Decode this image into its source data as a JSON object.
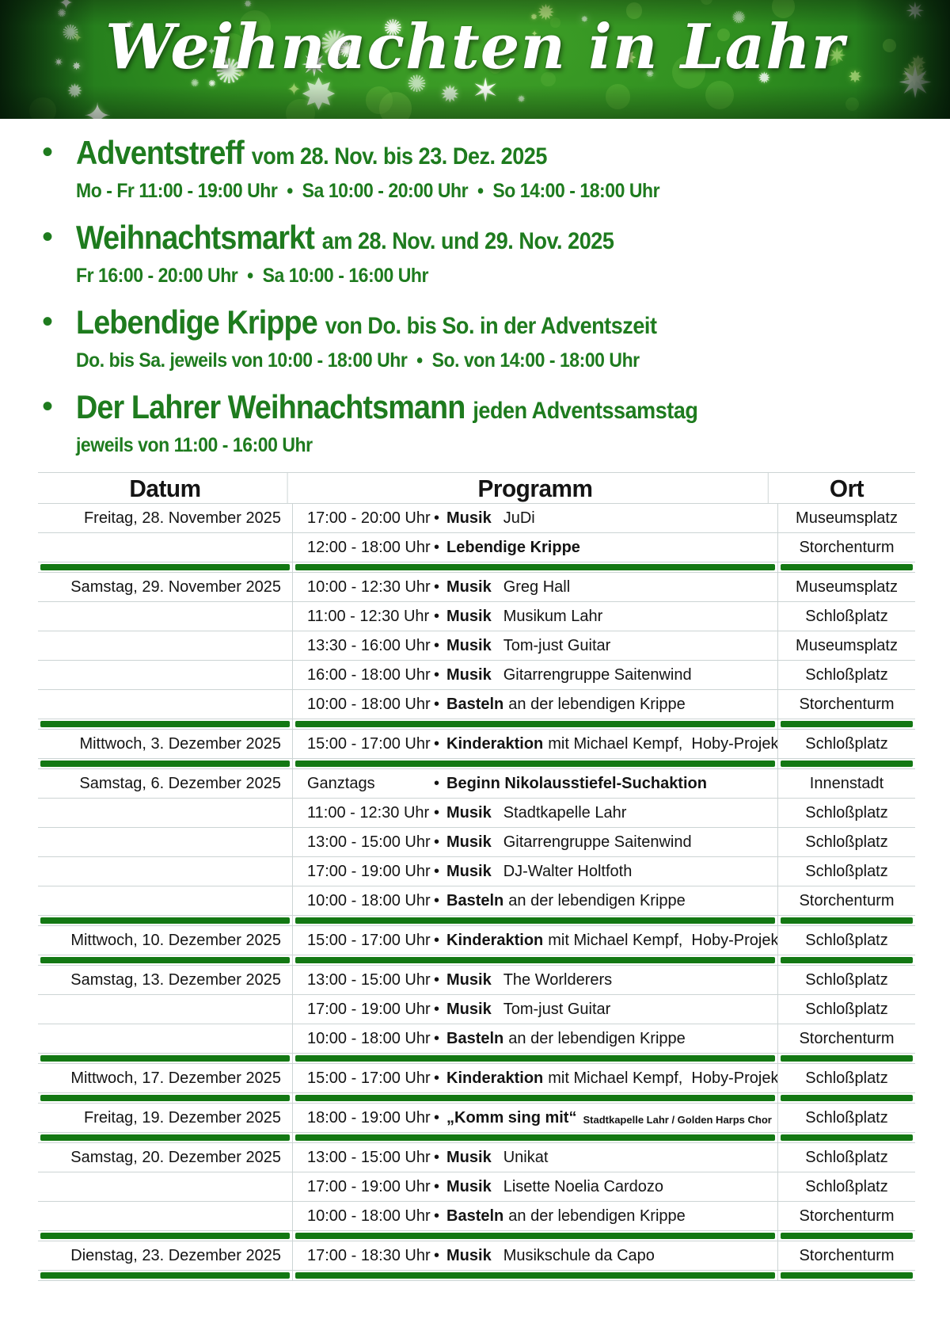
{
  "banner": {
    "title": "Weihnachten in Lahr"
  },
  "colors": {
    "heading_green": "#1e7b1e",
    "bar_green": "#137813",
    "banner_center_green": "#3fa028",
    "banner_edge_green": "#093312",
    "table_line_gray": "#ccd4d4"
  },
  "events": [
    {
      "bullet": "•",
      "title": "Adventstreff",
      "subtitle": "vom 28. Nov. bis 23. Dez. 2025",
      "times": "Mo - Fr 11:00 - 19:00 Uhr  •  Sa 10:00 - 20:00 Uhr  •  So 14:00 - 18:00 Uhr"
    },
    {
      "bullet": "•",
      "title": "Weihnachtsmarkt",
      "subtitle": "am 28. Nov. und 29. Nov. 2025",
      "times": "Fr 16:00 - 20:00 Uhr  •  Sa 10:00 - 16:00 Uhr"
    },
    {
      "bullet": "•",
      "title": "Lebendige Krippe",
      "subtitle": "von Do. bis So. in der Adventszeit",
      "times": "Do. bis Sa. jeweils von 10:00 - 18:00 Uhr  •  So. von 14:00 - 18:00 Uhr"
    },
    {
      "bullet": "•",
      "title": "Der Lahrer Weihnachtsmann",
      "subtitle": "jeden Adventssamstag",
      "times": "jeweils von 11:00 - 16:00 Uhr"
    }
  ],
  "table": {
    "headers": [
      "Datum",
      "Programm",
      "Ort"
    ],
    "bullet_char": "•",
    "groups": [
      {
        "date": "Freitag, 28. November 2025",
        "rows": [
          {
            "time": "17:00 - 20:00 Uhr",
            "label": "Musik",
            "detail": "JuDi",
            "ort": "Museumsplatz"
          },
          {
            "time": "12:00 - 18:00 Uhr",
            "label": "Lebendige Krippe",
            "detail": "",
            "ort": "Storchenturm"
          }
        ]
      },
      {
        "date": "Samstag, 29. November 2025",
        "rows": [
          {
            "time": "10:00 - 12:30 Uhr",
            "label": "Musik",
            "detail": "Greg Hall",
            "ort": "Museumsplatz"
          },
          {
            "time": "11:00 - 12:30 Uhr",
            "label": "Musik",
            "detail": "Musikum Lahr",
            "ort": "Schloßplatz"
          },
          {
            "time": "13:30 - 16:00 Uhr",
            "label": "Musik",
            "detail": "Tom-just Guitar",
            "ort": "Museumsplatz"
          },
          {
            "time": "16:00 - 18:00 Uhr",
            "label": "Musik",
            "detail": "Gitarrengruppe Saitenwind",
            "ort": "Schloßplatz"
          },
          {
            "time": "10:00 - 18:00 Uhr",
            "label": "Basteln",
            "detail": "an der lebendigen Krippe",
            "ort": "Storchenturm"
          }
        ]
      },
      {
        "date": "Mittwoch, 3. Dezember 2025",
        "rows": [
          {
            "time": "15:00 - 17:00 Uhr",
            "label": "Kinderaktion",
            "detail": "mit Michael Kempf,  Hoby-Projekt",
            "ort": "Schloßplatz"
          }
        ]
      },
      {
        "date": "Samstag, 6. Dezember 2025",
        "rows": [
          {
            "time": "Ganztags",
            "label": "Beginn Nikolausstiefel-Suchaktion",
            "detail": "",
            "ort": "Innenstadt"
          },
          {
            "time": "11:00 - 12:30 Uhr",
            "label": "Musik",
            "detail": "Stadtkapelle Lahr",
            "ort": "Schloßplatz"
          },
          {
            "time": "13:00 - 15:00 Uhr",
            "label": "Musik",
            "detail": "Gitarrengruppe Saitenwind",
            "ort": "Schloßplatz"
          },
          {
            "time": "17:00 - 19:00 Uhr",
            "label": "Musik",
            "detail": "DJ-Walter Holtfoth",
            "ort": "Schloßplatz"
          },
          {
            "time": "10:00 - 18:00 Uhr",
            "label": "Basteln",
            "detail": "an der lebendigen Krippe",
            "ort": "Storchenturm"
          }
        ]
      },
      {
        "date": "Mittwoch, 10. Dezember 2025",
        "rows": [
          {
            "time": "15:00 - 17:00 Uhr",
            "label": "Kinderaktion",
            "detail": "mit Michael Kempf,  Hoby-Projekt",
            "ort": "Schloßplatz"
          }
        ]
      },
      {
        "date": "Samstag, 13. Dezember 2025",
        "rows": [
          {
            "time": "13:00 - 15:00 Uhr",
            "label": "Musik",
            "detail": "The Worlderers",
            "ort": "Schloßplatz"
          },
          {
            "time": "17:00 - 19:00 Uhr",
            "label": "Musik",
            "detail": "Tom-just Guitar",
            "ort": "Schloßplatz"
          },
          {
            "time": "10:00 - 18:00 Uhr",
            "label": "Basteln",
            "detail": "an der lebendigen Krippe",
            "ort": "Storchenturm"
          }
        ]
      },
      {
        "date": "Mittwoch, 17. Dezember 2025",
        "rows": [
          {
            "time": "15:00 - 17:00 Uhr",
            "label": "Kinderaktion",
            "detail": "mit Michael Kempf,  Hoby-Projekt",
            "ort": "Schloßplatz"
          }
        ]
      },
      {
        "date": "Freitag, 19. Dezember 2025",
        "rows": [
          {
            "time": "18:00 - 19:00 Uhr",
            "label": "„Komm sing mit“",
            "detail": "",
            "detail_small": "Stadtkapelle Lahr / Golden Harps Chor",
            "ort": "Schloßplatz"
          }
        ]
      },
      {
        "date": "Samstag, 20. Dezember 2025",
        "rows": [
          {
            "time": "13:00 - 15:00 Uhr",
            "label": "Musik",
            "detail": "Unikat",
            "ort": "Schloßplatz"
          },
          {
            "time": "17:00 - 19:00 Uhr",
            "label": "Musik",
            "detail": "Lisette Noelia Cardozo",
            "ort": "Schloßplatz"
          },
          {
            "time": "10:00 - 18:00 Uhr",
            "label": "Basteln",
            "detail": "an der lebendigen Krippe",
            "ort": "Storchenturm"
          }
        ]
      },
      {
        "date": "Dienstag, 23. Dezember 2025",
        "rows": [
          {
            "time": "17:00 - 18:30 Uhr",
            "label": "Musik",
            "detail": "Musikschule da Capo",
            "ort": "Storchenturm"
          }
        ]
      }
    ]
  }
}
